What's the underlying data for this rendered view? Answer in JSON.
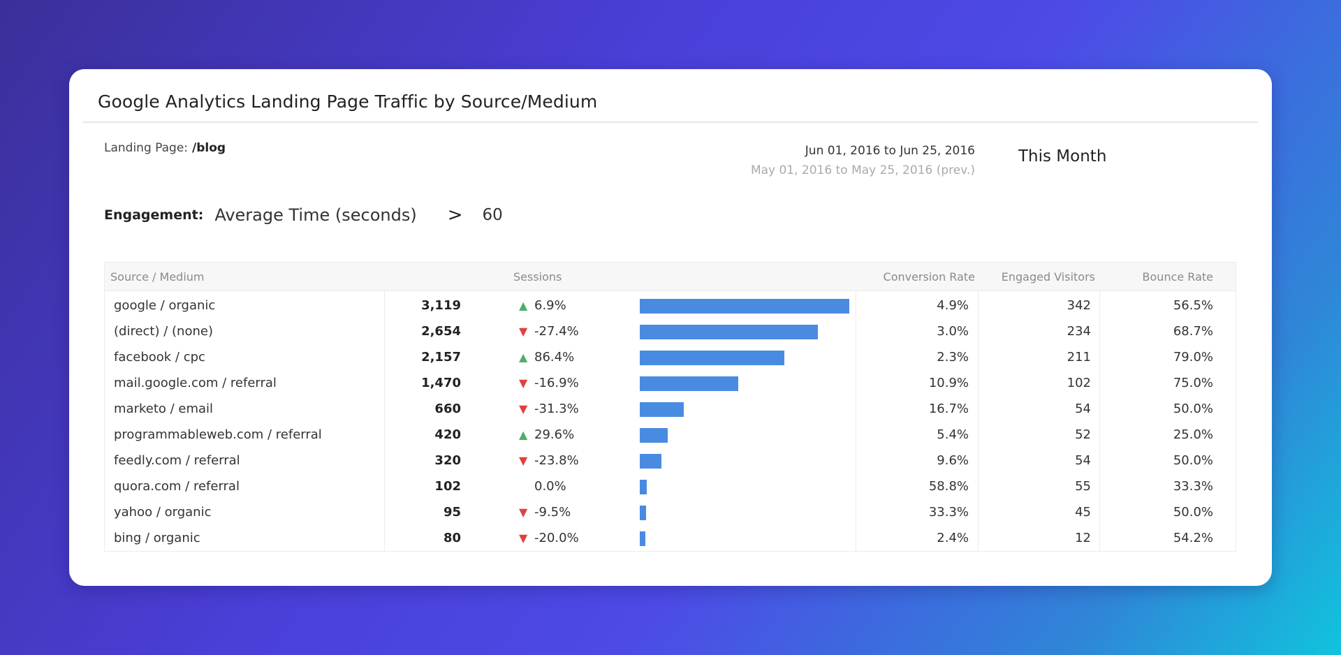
{
  "widget": {
    "title": "Google Analytics Landing Page Traffic by Source/Medium",
    "landing_label": "Landing Page:",
    "landing_value": "/blog",
    "date_current": "Jun 01, 2016  to Jun 25, 2016",
    "date_previous": "May 01, 2016  to May 25, 2016 (prev.)",
    "period": "This Month"
  },
  "engagement": {
    "label": "Engagement:",
    "metric": "Average Time (seconds)",
    "operator": ">",
    "value": "60"
  },
  "table": {
    "headers": {
      "source": "Source / Medium",
      "sessions": "Sessions",
      "conversion": "Conversion Rate",
      "engaged": "Engaged Visitors",
      "bounce": "Bounce Rate"
    },
    "max_sessions": 3119,
    "rows": [
      {
        "source": "google / organic",
        "sessions": "3,119",
        "sessions_value": 3119,
        "trend": "up",
        "change": "6.9%",
        "conversion": "4.9%",
        "engaged": "342",
        "bounce": "56.5%"
      },
      {
        "source": "(direct) / (none)",
        "sessions": "2,654",
        "sessions_value": 2654,
        "trend": "down",
        "change": "-27.4%",
        "conversion": "3.0%",
        "engaged": "234",
        "bounce": "68.7%"
      },
      {
        "source": "facebook / cpc",
        "sessions": "2,157",
        "sessions_value": 2157,
        "trend": "up",
        "change": "86.4%",
        "conversion": "2.3%",
        "engaged": "211",
        "bounce": "79.0%"
      },
      {
        "source": "mail.google.com / referral",
        "sessions": "1,470",
        "sessions_value": 1470,
        "trend": "down",
        "change": "-16.9%",
        "conversion": "10.9%",
        "engaged": "102",
        "bounce": "75.0%"
      },
      {
        "source": "marketo / email",
        "sessions": "660",
        "sessions_value": 660,
        "trend": "down",
        "change": "-31.3%",
        "conversion": "16.7%",
        "engaged": "54",
        "bounce": "50.0%"
      },
      {
        "source": "programmableweb.com / referral",
        "sessions": "420",
        "sessions_value": 420,
        "trend": "up",
        "change": "29.6%",
        "conversion": "5.4%",
        "engaged": "52",
        "bounce": "25.0%"
      },
      {
        "source": "feedly.com / referral",
        "sessions": "320",
        "sessions_value": 320,
        "trend": "down",
        "change": "-23.8%",
        "conversion": "9.6%",
        "engaged": "54",
        "bounce": "50.0%"
      },
      {
        "source": "quora.com / referral",
        "sessions": "102",
        "sessions_value": 102,
        "trend": "none",
        "change": "0.0%",
        "conversion": "58.8%",
        "engaged": "55",
        "bounce": "33.3%"
      },
      {
        "source": "yahoo / organic",
        "sessions": "95",
        "sessions_value": 95,
        "trend": "down",
        "change": "-9.5%",
        "conversion": "33.3%",
        "engaged": "45",
        "bounce": "50.0%"
      },
      {
        "source": "bing / organic",
        "sessions": "80",
        "sessions_value": 80,
        "trend": "down",
        "change": "-20.0%",
        "conversion": "2.4%",
        "engaged": "12",
        "bounce": "54.2%"
      }
    ]
  },
  "colors": {
    "bar": "#4a8be2",
    "trend_up": "#4caf6a",
    "trend_down": "#e0413f"
  },
  "icons": {
    "trend_up": "triangle-up-icon",
    "trend_down": "triangle-down-icon"
  }
}
